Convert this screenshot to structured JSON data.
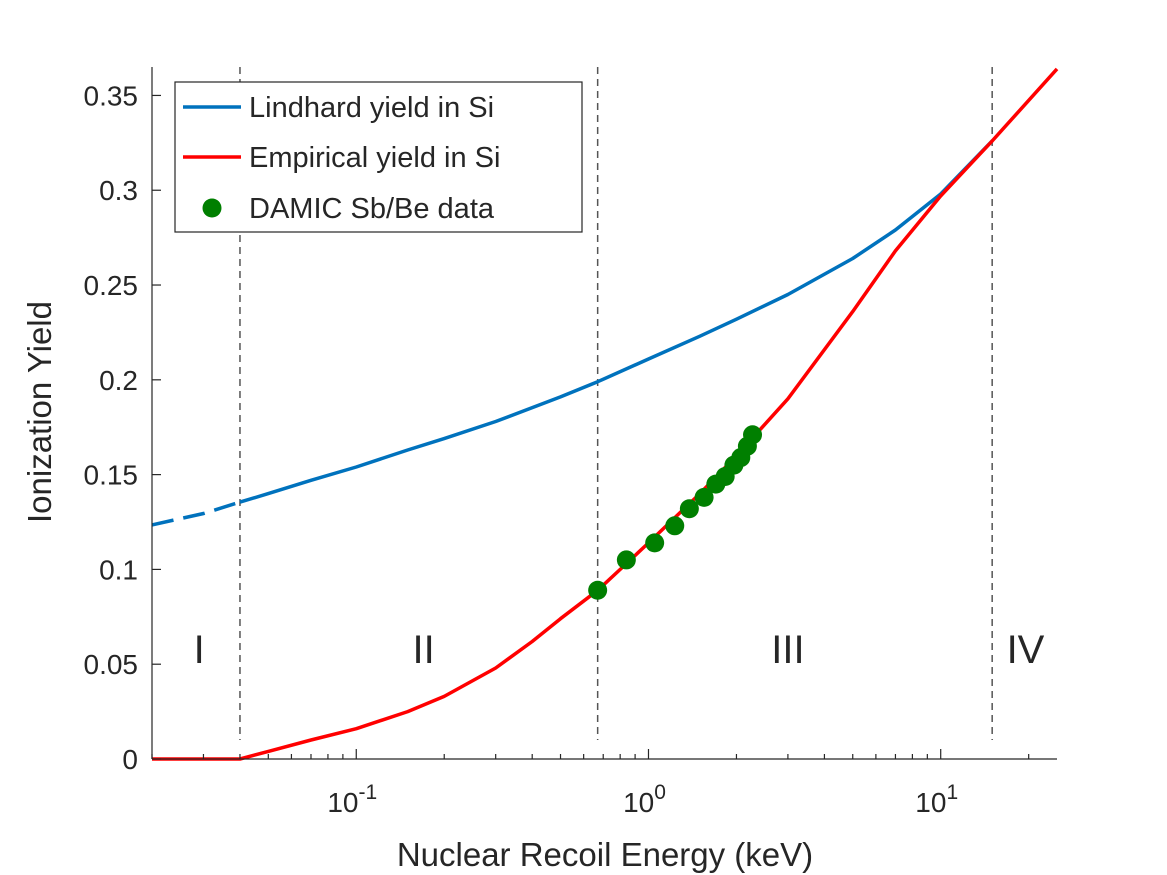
{
  "chart_data": {
    "type": "line",
    "title": "",
    "xlabel": "Nuclear Recoil Energy (keV)",
    "ylabel": "Ionization Yield",
    "xscale": "log",
    "xlim": [
      0.02,
      25
    ],
    "ylim": [
      0,
      0.365
    ],
    "grid": false,
    "legend_position": "top-left",
    "xticks": [
      {
        "value": 0.1,
        "base": "10",
        "exp": "-1"
      },
      {
        "value": 1,
        "base": "10",
        "exp": "0"
      },
      {
        "value": 10,
        "base": "10",
        "exp": "1"
      }
    ],
    "yticks": [
      {
        "value": 0,
        "label": "0"
      },
      {
        "value": 0.05,
        "label": "0.05"
      },
      {
        "value": 0.1,
        "label": "0.1"
      },
      {
        "value": 0.15,
        "label": "0.15"
      },
      {
        "value": 0.2,
        "label": "0.2"
      },
      {
        "value": 0.25,
        "label": "0.25"
      },
      {
        "value": 0.3,
        "label": "0.3"
      },
      {
        "value": 0.35,
        "label": "0.35"
      }
    ],
    "boundaries": [
      0.04,
      0.67,
      15
    ],
    "regions": [
      {
        "label": "I",
        "x": 0.029,
        "y": 0.058
      },
      {
        "label": "II",
        "x": 0.17,
        "y": 0.058
      },
      {
        "label": "III",
        "x": 3.0,
        "y": 0.058
      },
      {
        "label": "IV",
        "x": 19.5,
        "y": 0.058
      }
    ],
    "series": [
      {
        "name": "Lindhard yield in Si",
        "color": "#0072bd",
        "type": "line",
        "dashed_x": [
          0.02,
          0.03,
          0.04
        ],
        "dashed_y": [
          0.1235,
          0.1295,
          0.1355
        ],
        "x": [
          0.04,
          0.05,
          0.07,
          0.1,
          0.15,
          0.2,
          0.3,
          0.5,
          0.67,
          1.0,
          1.5,
          2.0,
          3.0,
          5.0,
          7.0,
          10.0,
          15.0
        ],
        "y": [
          0.1355,
          0.14,
          0.147,
          0.154,
          0.163,
          0.169,
          0.178,
          0.191,
          0.199,
          0.211,
          0.223,
          0.232,
          0.245,
          0.264,
          0.279,
          0.298,
          0.326
        ]
      },
      {
        "name": "Empirical yield in Si",
        "color": "#ff0000",
        "type": "line",
        "x": [
          0.02,
          0.04,
          0.05,
          0.07,
          0.1,
          0.15,
          0.2,
          0.3,
          0.4,
          0.5,
          0.67,
          0.8,
          1.0,
          1.5,
          2.0,
          3.0,
          5.0,
          7.0,
          10.0,
          15.0,
          25.0
        ],
        "y": [
          0,
          0,
          0.004,
          0.01,
          0.016,
          0.025,
          0.033,
          0.048,
          0.062,
          0.074,
          0.089,
          0.1,
          0.114,
          0.14,
          0.16,
          0.19,
          0.236,
          0.268,
          0.297,
          0.326,
          0.364
        ]
      },
      {
        "name": "DAMIC Sb/Be data",
        "color": "#007f00",
        "type": "scatter",
        "x": [
          0.67,
          0.84,
          1.05,
          1.23,
          1.38,
          1.55,
          1.7,
          1.83,
          1.96,
          2.07,
          2.18,
          2.27
        ],
        "y": [
          0.089,
          0.105,
          0.114,
          0.123,
          0.132,
          0.138,
          0.145,
          0.149,
          0.155,
          0.159,
          0.165,
          0.171
        ]
      }
    ]
  }
}
